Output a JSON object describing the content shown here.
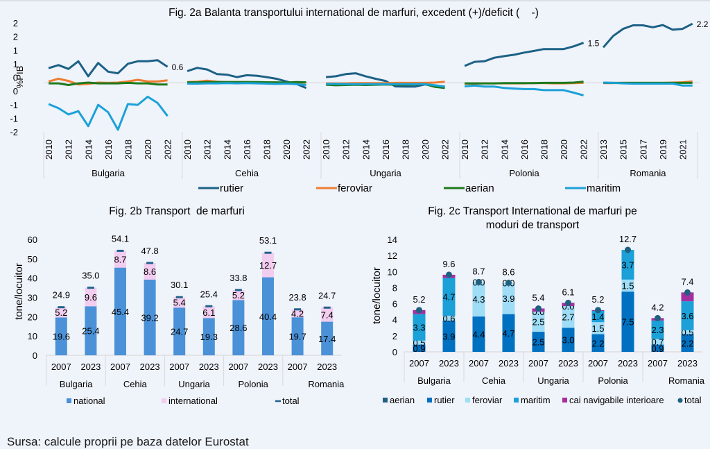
{
  "source_note": "Sursa: calcule proprii pe baza datelor Eurostat",
  "chart_data": [
    {
      "id": "fig2a",
      "type": "line",
      "title": "Fig. 2a Balanta transportului international de marfuri, excedent (+)/deficit (    -)",
      "ylabel": "%PIB",
      "xlabel": "",
      "ylim": [
        -1.85,
        2.35
      ],
      "yticks": [
        2.25,
        1.75,
        1.25,
        0.75,
        0.25,
        -0.25,
        -0.75,
        -1.25,
        -1.75
      ],
      "ytick_labels": [
        "2",
        "2",
        "1",
        "1",
        "0",
        "0",
        "-1",
        "-1",
        "-2"
      ],
      "zero_line": true,
      "legend_position": "bottom",
      "colors": {
        "rutier": "#1c6185",
        "feroviar": "#ed7d31",
        "aerian": "#1e7a1e",
        "maritim": "#1ba1d8"
      },
      "series_names": [
        "rutier",
        "feroviar",
        "aerian",
        "maritim"
      ],
      "panels": [
        {
          "country": "Bulgaria",
          "years": [
            2010,
            2011,
            2012,
            2013,
            2014,
            2015,
            2016,
            2017,
            2018,
            2019,
            2020,
            2021,
            2022
          ],
          "tick_labels": [
            "2010",
            "2012",
            "2014",
            "2016",
            "2018",
            "2020",
            "2022"
          ],
          "end_label": "0.6",
          "series": {
            "rutier": [
              0.59,
              0.7,
              0.56,
              0.84,
              0.29,
              0.78,
              0.46,
              0.4,
              0.75,
              0.84,
              0.84,
              0.88,
              0.64
            ],
            "feroviar": [
              0.1,
              0.2,
              0.12,
              -0.01,
              0.01,
              0.06,
              0.05,
              0.06,
              0.1,
              0.16,
              0.1,
              0.1,
              0.14
            ],
            "aerian": [
              0.03,
              0.03,
              -0.03,
              0.03,
              0.06,
              0.03,
              0.03,
              0.03,
              0.05,
              0.03,
              0.03,
              -0.01,
              -0.01
            ],
            "maritim": [
              -0.73,
              -0.88,
              -1.11,
              -0.99,
              -1.54,
              -0.76,
              -1.03,
              -1.67,
              -0.73,
              -0.76,
              -0.46,
              -0.69,
              -1.17
            ]
          }
        },
        {
          "country": "Cehia",
          "years": [
            2010,
            2011,
            2012,
            2013,
            2014,
            2015,
            2016,
            2017,
            2018,
            2019,
            2020,
            2021,
            2022
          ],
          "tick_labels": [
            "2010",
            "2012",
            "2014",
            "2016",
            "2018",
            "2020",
            "2022"
          ],
          "end_label": "",
          "series": {
            "rutier": [
              0.48,
              0.6,
              0.54,
              0.37,
              0.35,
              0.26,
              0.33,
              0.31,
              0.26,
              0.2,
              0.1,
              0.01,
              -0.14
            ],
            "feroviar": [
              0.08,
              0.09,
              0.13,
              0.09,
              0.08,
              0.08,
              0.08,
              0.07,
              0.07,
              0.06,
              0.05,
              0.06,
              0.06
            ],
            "aerian": [
              0.07,
              0.07,
              0.08,
              0.08,
              0.08,
              0.08,
              0.08,
              0.08,
              0.07,
              0.07,
              0.06,
              0.08,
              0.07
            ],
            "maritim": [
              0.02,
              0.02,
              0.03,
              0.03,
              0.04,
              0.03,
              0.04,
              0.03,
              0.02,
              0.01,
              0.02,
              0.0,
              -0.03
            ]
          }
        },
        {
          "country": "Ungaria",
          "years": [
            2010,
            2011,
            2012,
            2013,
            2014,
            2015,
            2016,
            2017,
            2018,
            2019,
            2020,
            2021,
            2022
          ],
          "tick_labels": [
            "2010",
            "2012",
            "2014",
            "2016",
            "2018",
            "2020",
            "2022"
          ],
          "end_label": "",
          "series": {
            "rutier": [
              0.26,
              0.29,
              0.37,
              0.4,
              0.29,
              0.2,
              0.12,
              -0.08,
              -0.09,
              -0.09,
              -0.01,
              -0.05,
              -0.09
            ],
            "feroviar": [
              0.03,
              0.03,
              0.03,
              0.04,
              0.04,
              0.04,
              0.04,
              0.05,
              0.05,
              0.05,
              0.05,
              0.06,
              0.09
            ],
            "aerian": [
              -0.02,
              -0.04,
              -0.03,
              -0.02,
              -0.03,
              -0.02,
              -0.01,
              -0.02,
              -0.02,
              -0.01,
              0.0,
              -0.1,
              -0.14
            ],
            "maritim": [
              0.01,
              0.01,
              0.0,
              0.0,
              0.0,
              0.0,
              0.0,
              0.0,
              0.0,
              0.0,
              0.0,
              -0.04,
              -0.09
            ]
          }
        },
        {
          "country": "Polonia",
          "years": [
            2010,
            2011,
            2012,
            2013,
            2014,
            2015,
            2016,
            2017,
            2018,
            2019,
            2020,
            2021,
            2022
          ],
          "tick_labels": [
            "2010",
            "2012",
            "2014",
            "2016",
            "2018",
            "2020",
            "2022"
          ],
          "end_label": "1.5",
          "series": {
            "rutier": [
              0.67,
              0.82,
              0.84,
              0.97,
              1.03,
              1.08,
              1.16,
              1.22,
              1.29,
              1.29,
              1.29,
              1.39,
              1.52
            ],
            "feroviar": [
              0.02,
              0.02,
              0.03,
              0.03,
              0.03,
              0.03,
              0.03,
              0.04,
              0.04,
              0.03,
              0.03,
              0.04,
              0.05
            ],
            "aerian": [
              0.03,
              0.03,
              0.03,
              0.03,
              0.04,
              0.04,
              0.04,
              0.04,
              0.05,
              0.05,
              0.05,
              0.06,
              0.09
            ],
            "maritim": [
              -0.08,
              -0.05,
              -0.09,
              -0.09,
              -0.14,
              -0.16,
              -0.18,
              -0.18,
              -0.22,
              -0.22,
              -0.22,
              -0.31,
              -0.41
            ]
          }
        },
        {
          "country": "Romania",
          "years": [
            2013,
            2014,
            2015,
            2016,
            2017,
            2018,
            2019,
            2020,
            2021,
            2022
          ],
          "tick_labels": [
            "2013",
            "2015",
            "2017",
            "2019",
            "2021"
          ],
          "end_label": "2.2",
          "series": {
            "rutier": [
              1.35,
              1.77,
              2.03,
              2.16,
              2.16,
              2.09,
              2.17,
              2.0,
              2.03,
              2.22
            ],
            "feroviar": [
              0.04,
              0.04,
              0.05,
              0.05,
              0.05,
              0.05,
              0.05,
              0.06,
              0.07,
              0.1
            ],
            "aerian": [
              0.05,
              0.05,
              0.05,
              0.05,
              0.05,
              0.05,
              0.05,
              0.05,
              0.05,
              0.05
            ],
            "maritim": [
              0.06,
              0.05,
              0.03,
              0.02,
              0.02,
              0.02,
              0.02,
              0.02,
              -0.05,
              -0.05
            ]
          }
        }
      ]
    },
    {
      "id": "fig2b",
      "type": "bar",
      "stacked": true,
      "title": "Fig. 2b Transport  de marfuri",
      "ylabel": "tone/locuitor",
      "xlabel": "",
      "ylim": [
        0,
        60
      ],
      "yticks": [
        0,
        10,
        20,
        30,
        40,
        50,
        60
      ],
      "grid": false,
      "legend_position": "bottom",
      "groups": [
        "Bulgaria",
        "Cehia",
        "Ungaria",
        "Polonia",
        "Romania"
      ],
      "categories": [
        "2007",
        "2023"
      ],
      "colors": {
        "national": "#4a91d8",
        "international": "#f2cdef",
        "total": "#1f6389"
      },
      "series": [
        {
          "name": "national",
          "values": [
            19.6,
            25.4,
            45.4,
            39.2,
            24.7,
            19.3,
            28.6,
            40.4,
            19.7,
            17.4
          ]
        },
        {
          "name": "international",
          "values": [
            5.2,
            9.6,
            8.7,
            8.6,
            5.4,
            6.1,
            5.2,
            12.7,
            4.2,
            7.4
          ]
        },
        {
          "name": "total",
          "values": [
            24.9,
            35.0,
            54.1,
            47.8,
            30.1,
            25.4,
            33.8,
            53.1,
            23.8,
            24.7
          ]
        }
      ],
      "legend": [
        "national",
        "international",
        "total"
      ]
    },
    {
      "id": "fig2c",
      "type": "bar",
      "stacked": true,
      "title": [
        "Fig. 2c Transport International de marfuri pe",
        "moduri de transport"
      ],
      "ylabel": "tone/locuitor",
      "xlabel": "",
      "ylim": [
        0,
        14
      ],
      "yticks": [
        0,
        2,
        4,
        6,
        8,
        10,
        12,
        14
      ],
      "grid": false,
      "legend_position": "bottom",
      "groups": [
        "Bulgaria",
        "Cehia",
        "Ungaria",
        "Polonia",
        "Romania"
      ],
      "categories": [
        "2007",
        "2023"
      ],
      "colors": {
        "aerian": "#1f5f80",
        "rutier": "#0070c0",
        "feroviar": "#9fdcf6",
        "maritim": "#1ba0d8",
        "cai navigabile interioare": "#a3309f",
        "total": "#1d6080"
      },
      "series": [
        {
          "name": "aerian",
          "values": [
            0.0,
            0.0,
            0.0,
            0.0,
            0.0,
            0.0,
            0.0,
            0.0,
            0.0,
            0.0
          ],
          "labeled": false
        },
        {
          "name": "rutier",
          "values": [
            0.9,
            3.9,
            4.4,
            4.7,
            2.5,
            3.0,
            2.2,
            7.5,
            0.9,
            2.2
          ],
          "labeled": true
        },
        {
          "name": "feroviar",
          "values": [
            0.5,
            0.6,
            4.3,
            3.9,
            2.5,
            2.7,
            1.5,
            1.5,
            0.7,
            0.5
          ],
          "labeled": true
        },
        {
          "name": "maritim",
          "values": [
            3.3,
            4.7,
            0.0,
            0.0,
            0.0,
            0.0,
            1.4,
            3.7,
            2.3,
            3.6
          ],
          "labeled": true
        },
        {
          "name": "cai navigabile interioare",
          "values": [
            0.5,
            0.4,
            0.0,
            0.0,
            0.4,
            0.4,
            0.1,
            0.0,
            0.3,
            1.1
          ],
          "labeled": false
        },
        {
          "name": "total",
          "values": [
            5.2,
            9.6,
            8.7,
            8.6,
            5.4,
            6.1,
            5.2,
            12.7,
            4.2,
            7.4
          ]
        }
      ],
      "legend": [
        "aerian",
        "rutier",
        "feroviar",
        "maritim",
        "cai navigabile interioare",
        "total"
      ]
    }
  ]
}
